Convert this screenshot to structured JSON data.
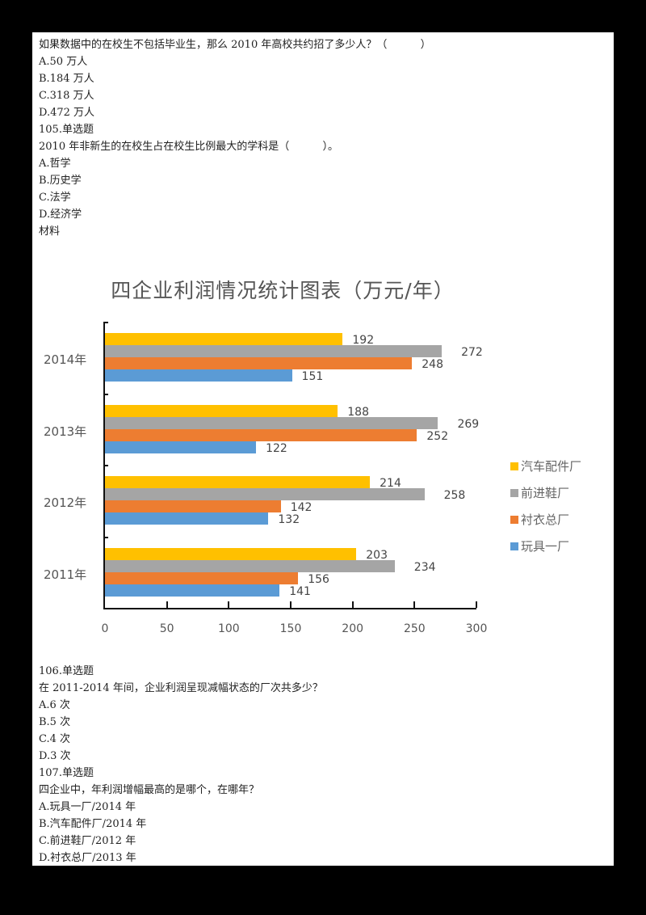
{
  "q104": {
    "stem": "如果数据中的在校生不包括毕业生，那么 2010 年高校共约招了多少人？（          ）",
    "options": [
      "A.50 万人",
      "B.184 万人",
      "C.318 万人",
      "D.472 万人"
    ]
  },
  "q105": {
    "header": "105.单选题",
    "stem": "2010 年非新生的在校生占在校生比例最大的学科是（          ）。",
    "options": [
      "A.哲学",
      "B.历史学",
      "C.法学",
      "D.经济学"
    ]
  },
  "material_label": "材料",
  "chart_data": {
    "type": "bar",
    "orientation": "horizontal",
    "title": "四企业利润情况统计图表（万元/年）",
    "categories": [
      "2014年",
      "2013年",
      "2012年",
      "2011年"
    ],
    "series": [
      {
        "name": "汽车配件厂",
        "color": "#FFC000",
        "values": [
          192,
          188,
          214,
          203
        ]
      },
      {
        "name": "前进鞋厂",
        "color": "#A5A5A5",
        "values": [
          272,
          269,
          258,
          234
        ]
      },
      {
        "name": "衬衣总厂",
        "color": "#ED7D31",
        "values": [
          248,
          252,
          142,
          156
        ]
      },
      {
        "name": "玩具一厂",
        "color": "#5B9BD5",
        "values": [
          151,
          122,
          132,
          141
        ]
      }
    ],
    "xlabel": "",
    "ylabel": "",
    "xlim": [
      0,
      300
    ],
    "xticks": [
      "0",
      "50",
      "100",
      "150",
      "200",
      "250",
      "300"
    ],
    "grid": false,
    "legend_position": "right"
  },
  "q106": {
    "header": "106.单选题",
    "stem": "在 2011-2014 年间，企业利润呈现减幅状态的厂次共多少？",
    "options": [
      "A.6 次",
      "B.5 次",
      "C.4 次",
      "D.3 次"
    ]
  },
  "q107": {
    "header": "107.单选题",
    "stem": "四企业中，年利润增幅最高的是哪个，在哪年？",
    "options": [
      "A.玩具一厂/2014 年",
      "B.汽车配件厂/2014 年",
      "C.前进鞋厂/2012 年",
      "D.衬衣总厂/2013 年"
    ]
  }
}
